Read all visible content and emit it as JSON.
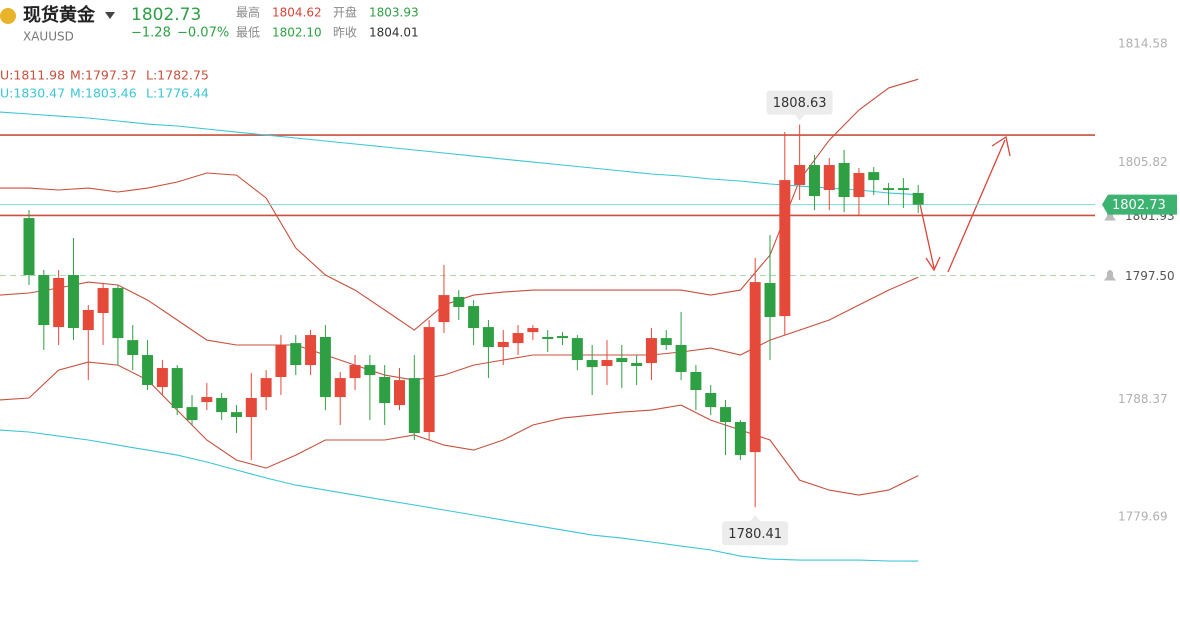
{
  "chart_data": {
    "type": "candlestick",
    "quote": {
      "name": "现货黄金",
      "code": "XAUUSD",
      "price": "1802.73",
      "change": "−1.28",
      "change_pct": "−0.07%",
      "stats": [
        {
          "label": "最高",
          "value": "1804.62",
          "color": "#d9453a"
        },
        {
          "label": "开盘",
          "value": "1803.93",
          "color": "#2ea043"
        },
        {
          "label": "最低",
          "value": "1802.10",
          "color": "#2ea043"
        },
        {
          "label": "昨收",
          "value": "1804.01",
          "color": "#333333"
        }
      ]
    },
    "ylim": [
      1772.1,
      1817.82
    ],
    "yticks": [
      1814.58,
      1805.82,
      1788.37,
      1779.69
    ],
    "up_color": "#e5493a",
    "down_color": "#2ea043",
    "ohlc": [
      [
        1801.74,
        1802.33,
        1796.8,
        1797.54
      ],
      [
        1797.54,
        1797.91,
        1792.01,
        1793.85
      ],
      [
        1793.7,
        1797.91,
        1792.38,
        1797.32
      ],
      [
        1797.54,
        1800.27,
        1792.74,
        1793.63
      ],
      [
        1793.48,
        1795.33,
        1789.79,
        1794.96
      ],
      [
        1794.74,
        1796.95,
        1792.38,
        1796.58
      ],
      [
        1796.58,
        1796.8,
        1790.9,
        1792.89
      ],
      [
        1792.74,
        1793.85,
        1790.53,
        1791.64
      ],
      [
        1791.64,
        1792.74,
        1789.06,
        1789.43
      ],
      [
        1789.28,
        1791.27,
        1788.69,
        1790.68
      ],
      [
        1790.68,
        1790.9,
        1787.21,
        1787.73
      ],
      [
        1787.8,
        1788.69,
        1786.48,
        1786.84
      ],
      [
        1788.17,
        1789.57,
        1787.58,
        1788.54
      ],
      [
        1788.47,
        1788.84,
        1786.84,
        1787.43
      ],
      [
        1787.43,
        1787.95,
        1785.89,
        1787.07
      ],
      [
        1787.07,
        1790.31,
        1783.89,
        1788.47
      ],
      [
        1788.54,
        1790.53,
        1787.58,
        1789.94
      ],
      [
        1790.02,
        1793.11,
        1788.69,
        1792.38
      ],
      [
        1792.52,
        1793.11,
        1790.16,
        1790.9
      ],
      [
        1790.9,
        1793.48,
        1790.16,
        1793.11
      ],
      [
        1792.97,
        1793.85,
        1787.58,
        1788.54
      ],
      [
        1788.54,
        1790.39,
        1786.48,
        1789.94
      ],
      [
        1789.94,
        1791.64,
        1789.06,
        1790.9
      ],
      [
        1790.9,
        1791.64,
        1786.84,
        1790.16
      ],
      [
        1790.02,
        1790.9,
        1786.48,
        1788.1
      ],
      [
        1787.95,
        1790.68,
        1787.58,
        1789.79
      ],
      [
        1789.94,
        1791.64,
        1785.37,
        1785.89
      ],
      [
        1785.96,
        1794.22,
        1785.37,
        1793.7
      ],
      [
        1794.07,
        1798.28,
        1793.26,
        1796.06
      ],
      [
        1795.92,
        1796.43,
        1794.22,
        1795.18
      ],
      [
        1795.25,
        1795.69,
        1792.38,
        1793.63
      ],
      [
        1793.7,
        1794.22,
        1789.94,
        1792.23
      ],
      [
        1792.23,
        1793.48,
        1790.9,
        1792.6
      ],
      [
        1792.52,
        1793.85,
        1791.64,
        1793.26
      ],
      [
        1793.33,
        1793.85,
        1792.74,
        1793.63
      ],
      [
        1792.97,
        1793.48,
        1791.86,
        1792.82
      ],
      [
        1793.04,
        1793.33,
        1792.38,
        1792.89
      ],
      [
        1792.89,
        1793.11,
        1790.53,
        1791.27
      ],
      [
        1791.27,
        1792.38,
        1788.69,
        1790.75
      ],
      [
        1790.83,
        1792.74,
        1789.43,
        1791.27
      ],
      [
        1791.42,
        1792.38,
        1789.2,
        1791.12
      ],
      [
        1791.05,
        1791.64,
        1789.43,
        1790.83
      ],
      [
        1791.05,
        1793.63,
        1789.79,
        1792.89
      ],
      [
        1792.89,
        1793.48,
        1792.01,
        1792.38
      ],
      [
        1792.38,
        1794.81,
        1789.79,
        1790.39
      ],
      [
        1790.39,
        1790.9,
        1787.58,
        1789.06
      ],
      [
        1788.84,
        1789.43,
        1787.21,
        1787.8
      ],
      [
        1787.8,
        1788.32,
        1784.26,
        1786.7
      ],
      [
        1786.7,
        1786.84,
        1783.89,
        1784.26
      ],
      [
        1784.48,
        1798.79,
        1780.41,
        1797.02
      ],
      [
        1796.95,
        1800.49,
        1791.27,
        1794.44
      ],
      [
        1794.51,
        1808.09,
        1793.11,
        1804.54
      ],
      [
        1804.18,
        1808.63,
        1803.07,
        1805.65
      ],
      [
        1805.65,
        1806.39,
        1802.33,
        1803.36
      ],
      [
        1803.81,
        1806.17,
        1802.33,
        1805.65
      ],
      [
        1805.8,
        1806.76,
        1802.18,
        1803.29
      ],
      [
        1803.29,
        1805.43,
        1801.96,
        1805.06
      ],
      [
        1805.13,
        1805.5,
        1803.44,
        1804.54
      ],
      [
        1803.95,
        1804.32,
        1802.7,
        1803.81
      ],
      [
        1803.95,
        1804.69,
        1802.48,
        1803.81
      ],
      [
        1803.59,
        1804.18,
        1802.11,
        1802.73
      ]
    ],
    "bands": [
      {
        "color": "#c8503c",
        "x": [
          -2,
          0,
          2,
          4,
          6,
          8,
          10,
          12,
          14,
          16,
          18,
          20,
          22,
          24,
          26,
          28,
          30,
          32,
          34,
          36,
          38,
          40,
          42,
          44,
          46,
          48,
          50,
          52,
          54,
          56,
          58,
          60
        ],
        "lines": [
          {
            "label": "U:1811.98",
            "values": [
              1803.95,
              1803.95,
              1803.81,
              1803.95,
              1803.66,
              1803.95,
              1804.4,
              1805.06,
              1804.91,
              1803.22,
              1799.53,
              1797.54,
              1796.43,
              1794.96,
              1793.48,
              1795.33,
              1796.06,
              1796.28,
              1796.43,
              1796.43,
              1796.43,
              1796.43,
              1796.43,
              1796.43,
              1796.06,
              1796.43,
              1799.01,
              1804.54,
              1807.49,
              1809.71,
              1811.33,
              1811.98
            ]
          },
          {
            "label": "M:1797.37",
            "values": [
              1796.06,
              1796.21,
              1796.58,
              1797.02,
              1796.8,
              1795.69,
              1794.22,
              1792.74,
              1792.38,
              1792.38,
              1792.38,
              1791.64,
              1790.9,
              1790.16,
              1789.79,
              1790.16,
              1790.9,
              1791.27,
              1791.64,
              1791.64,
              1791.64,
              1791.64,
              1791.64,
              1791.86,
              1792.15,
              1791.64,
              1792.74,
              1793.48,
              1794.22,
              1795.33,
              1796.43,
              1797.37
            ]
          },
          {
            "label": "L:1782.75",
            "values": [
              1788.32,
              1788.47,
              1790.53,
              1791.12,
              1790.9,
              1789.79,
              1787.58,
              1785.37,
              1783.89,
              1783.3,
              1784.26,
              1785.37,
              1785.37,
              1785.37,
              1785.74,
              1785.0,
              1784.63,
              1785.37,
              1786.48,
              1786.99,
              1787.21,
              1787.43,
              1787.58,
              1787.95,
              1786.84,
              1786.11,
              1785.37,
              1782.42,
              1781.68,
              1781.31,
              1781.68,
              1782.75
            ]
          }
        ]
      },
      {
        "color": "#3cc6d6",
        "x": [
          -2,
          0,
          2,
          4,
          6,
          8,
          10,
          12,
          14,
          16,
          18,
          20,
          22,
          24,
          26,
          28,
          30,
          32,
          34,
          36,
          38,
          40,
          42,
          44,
          46,
          48,
          50,
          52,
          54,
          56,
          58,
          60
        ],
        "lines": [
          {
            "label": "U:1830.47",
            "values": null
          },
          {
            "label": "M:1803.46",
            "values": [
              1809.56,
              1809.41,
              1809.26,
              1809.12,
              1808.9,
              1808.67,
              1808.53,
              1808.31,
              1808.08,
              1807.86,
              1807.64,
              1807.42,
              1807.2,
              1806.98,
              1806.76,
              1806.54,
              1806.31,
              1806.09,
              1805.87,
              1805.65,
              1805.43,
              1805.21,
              1804.99,
              1804.84,
              1804.62,
              1804.47,
              1804.25,
              1804.1,
              1803.95,
              1803.81,
              1803.59,
              1803.46
            ]
          },
          {
            "label": "L:1776.44",
            "values": [
              1786.11,
              1785.96,
              1785.66,
              1785.37,
              1785.0,
              1784.63,
              1784.26,
              1783.75,
              1783.16,
              1782.57,
              1782.05,
              1781.68,
              1781.31,
              1780.94,
              1780.58,
              1780.21,
              1779.84,
              1779.47,
              1779.1,
              1778.73,
              1778.36,
              1778.14,
              1777.85,
              1777.55,
              1777.26,
              1776.81,
              1776.59,
              1776.52,
              1776.52,
              1776.52,
              1776.45,
              1776.44
            ]
          }
        ]
      }
    ],
    "levels": [
      {
        "value": 1807.86,
        "color": "#c8503c"
      },
      {
        "value": 1801.93,
        "label": "1801.93",
        "color": "#c8503c"
      },
      {
        "value": {
          "value": 1797.5,
          "label": "1797.50"
        },
        "color": "#a8dca8",
        "dashed": true
      }
    ],
    "last": {
      "value": 1802.73,
      "color": "#3cb371"
    },
    "high_label": {
      "value": 1808.63,
      "index": 52
    },
    "low_label": {
      "value": 1780.41,
      "index": 49
    }
  }
}
